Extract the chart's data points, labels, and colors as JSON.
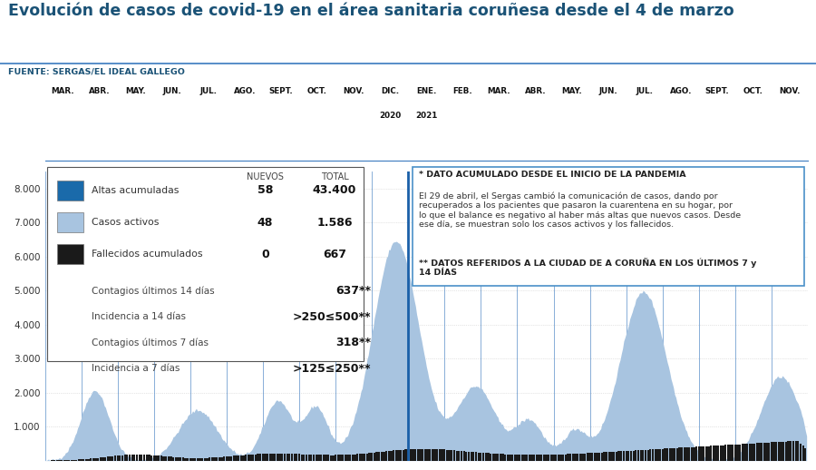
{
  "title": "Evolución de casos de covid-19 en el área sanitaria coruñesa desde el 4 de marzo",
  "source": "FUENTE: SERGAS/EL IDEAL GALLEGO",
  "title_color": "#1a5276",
  "source_color": "#1a5276",
  "months_2020": [
    "MAR.",
    "ABR.",
    "MAY.",
    "JUN.",
    "JUL.",
    "AGO.",
    "SEPT.",
    "OCT.",
    "NOV.",
    "DIC."
  ],
  "months_2021": [
    "ENE.",
    "FEB.",
    "MAR.",
    "ABR.",
    "MAY.",
    "JUN.",
    "JUL.",
    "AGO.",
    "SEPT.",
    "OCT.",
    "NOV."
  ],
  "ylim": [
    0,
    8500
  ],
  "yticks": [
    1000,
    2000,
    3000,
    4000,
    5000,
    6000,
    7000,
    8000
  ],
  "color_active": "#a8c4e0",
  "color_altas": "#1a6aaa",
  "color_fallecidos": "#1a1a1a",
  "color_separator": "#3a7abf",
  "color_sep_strong": "#1a5fa8",
  "grid_color": "#cccccc",
  "legend_nuevos_altas": "58",
  "legend_total_altas": "43.400",
  "legend_nuevos_activos": "48",
  "legend_total_activos": "1.586",
  "legend_nuevos_fallecidos": "0",
  "legend_total_fallecidos": "667",
  "legend_contagios14": "637**",
  "legend_incidencia14": ">250≤500**",
  "legend_contagios7": "318**",
  "legend_incidencia7": ">125≤250**",
  "ann_line1": "* DATO ACUMULADO DESDE EL INICIO DE LA PANDEMIA",
  "ann_body": "El 29 de abril, el Sergas cambió la comunicación de casos, dando por\nrecuperados a los pacientes que pasaron la cuarentena en su hogar, por\nlo que el balance es negativo al haber más altas que nuevos casos. Desde\nese día, se muestran solo los casos activos y los fallecidos.",
  "ann_footer": "** DATOS REFERIDOS A LA CIUDAD DE A CORUÑA EN LOS ÚLTIMOS 7 y\n14 DÍAS"
}
